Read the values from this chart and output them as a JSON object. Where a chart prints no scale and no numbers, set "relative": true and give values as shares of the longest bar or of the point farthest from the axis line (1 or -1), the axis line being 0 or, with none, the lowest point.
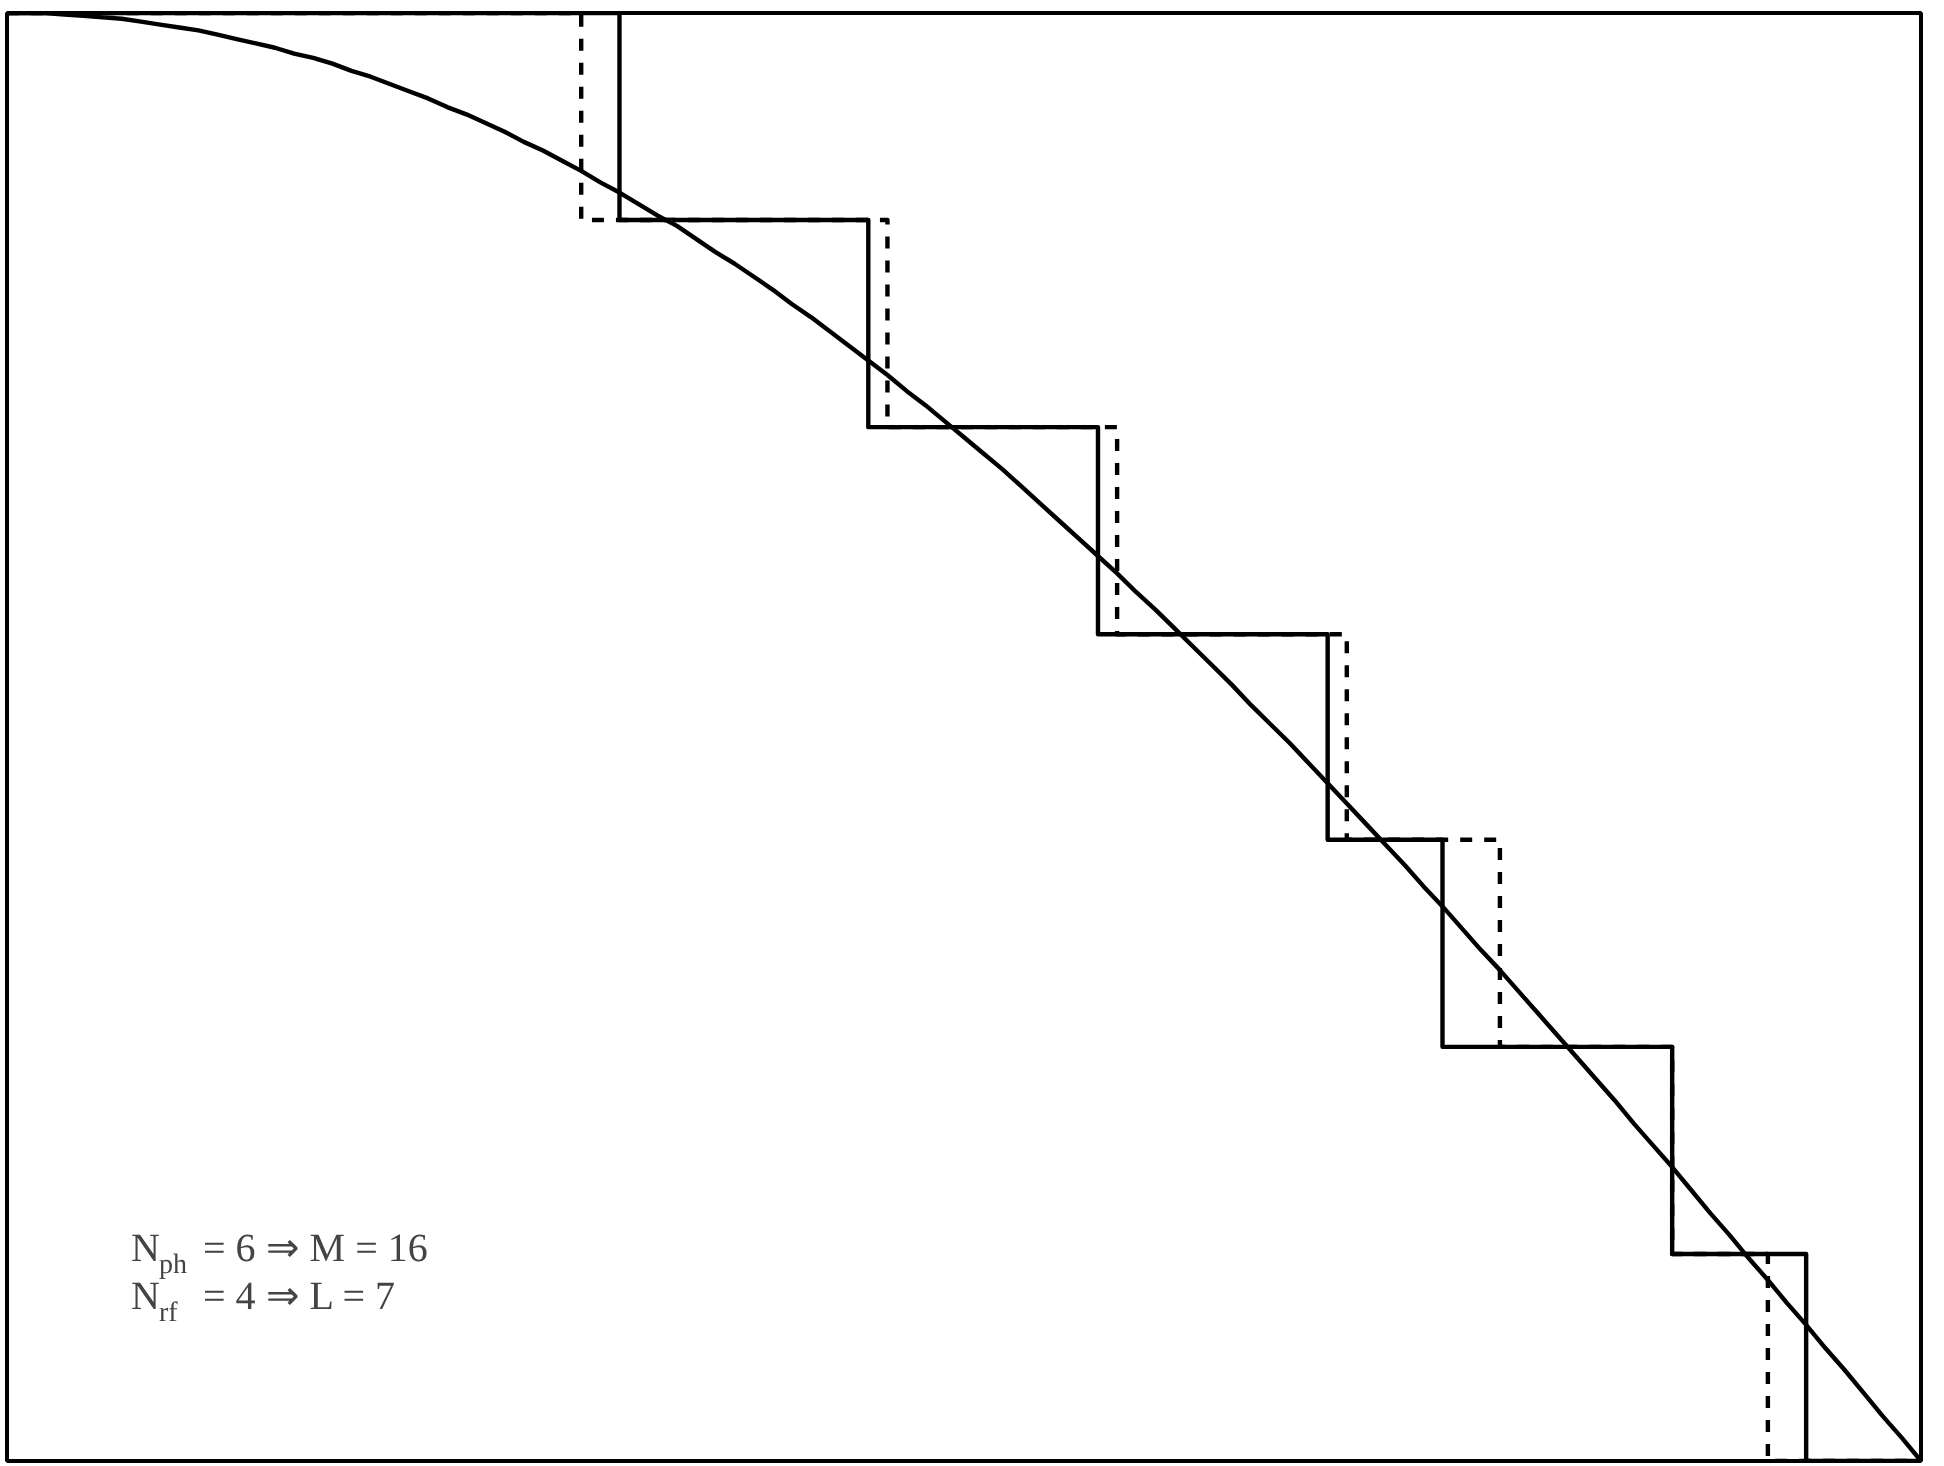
{
  "chart_data": {
    "type": "step",
    "relative": true,
    "grid": false,
    "categories": [
      null,
      null,
      null,
      null,
      null,
      null,
      null,
      null,
      null,
      null,
      null,
      null,
      null,
      null,
      null,
      null,
      null,
      null,
      null,
      null,
      null,
      null,
      null,
      null,
      null,
      null,
      null,
      null,
      null,
      null,
      null,
      null,
      null,
      null,
      null,
      null,
      null,
      null,
      null,
      null,
      null,
      null,
      null,
      null,
      null,
      null,
      null,
      null,
      null,
      null,
      null,
      null,
      null,
      null,
      null,
      null,
      null,
      null,
      null,
      null,
      null,
      null,
      null,
      null,
      null,
      null,
      null,
      null,
      null,
      null,
      null,
      null,
      null,
      null,
      null,
      null,
      null,
      null,
      null,
      null,
      null,
      null,
      null,
      null,
      null,
      null,
      null,
      null,
      null,
      null,
      null,
      null,
      null,
      null,
      null,
      null,
      null,
      null,
      null,
      null,
      null
    ],
    "series": [
      {
        "line_style": "solid",
        "color": "#000000",
        "values": [
          1,
          1,
          1,
          1,
          1,
          1,
          1,
          1,
          1,
          1,
          1,
          1,
          1,
          1,
          1,
          1,
          1,
          1,
          1,
          1,
          1,
          1,
          1,
          1,
          1,
          1,
          1,
          1,
          1,
          1,
          1,
          1,
          0.857,
          0.857,
          0.857,
          0.857,
          0.857,
          0.857,
          0.857,
          0.857,
          0.857,
          0.857,
          0.857,
          0.857,
          0.857,
          0.714,
          0.714,
          0.714,
          0.714,
          0.714,
          0.714,
          0.714,
          0.714,
          0.714,
          0.714,
          0.714,
          0.714,
          0.571,
          0.571,
          0.571,
          0.571,
          0.571,
          0.571,
          0.571,
          0.571,
          0.571,
          0.571,
          0.571,
          0.571,
          0.429,
          0.429,
          0.429,
          0.429,
          0.429,
          0.429,
          0.286,
          0.286,
          0.286,
          0.286,
          0.286,
          0.286,
          0.286,
          0.286,
          0.286,
          0.286,
          0.286,
          0.286,
          0.143,
          0.143,
          0.143,
          0.143,
          0.143,
          0.143,
          0.143,
          0,
          0,
          0,
          0,
          0,
          0,
          0
        ]
      },
      {
        "type": "step",
        "line_style": "dashed",
        "color": "#000000",
        "values": [
          1,
          1,
          1,
          1,
          1,
          1,
          1,
          1,
          1,
          1,
          1,
          1,
          1,
          1,
          1,
          1,
          1,
          1,
          1,
          1,
          1,
          1,
          1,
          1,
          1,
          1,
          1,
          1,
          1,
          1,
          0.857,
          0.857,
          0.857,
          0.857,
          0.857,
          0.857,
          0.857,
          0.857,
          0.857,
          0.857,
          0.857,
          0.857,
          0.857,
          0.857,
          0.857,
          0.857,
          0.714,
          0.714,
          0.714,
          0.714,
          0.714,
          0.714,
          0.714,
          0.714,
          0.714,
          0.714,
          0.714,
          0.714,
          0.571,
          0.571,
          0.571,
          0.571,
          0.571,
          0.571,
          0.571,
          0.571,
          0.571,
          0.571,
          0.571,
          0.571,
          0.429,
          0.429,
          0.429,
          0.429,
          0.429,
          0.429,
          0.429,
          0.429,
          0.286,
          0.286,
          0.286,
          0.286,
          0.286,
          0.286,
          0.286,
          0.286,
          0.286,
          0.143,
          0.143,
          0.143,
          0.143,
          0.143,
          0,
          0,
          0,
          0,
          0,
          0,
          0,
          0,
          0
        ]
      },
      {
        "type": "line",
        "line_style": "solid",
        "color": "#000000",
        "values": [
          1,
          1,
          1,
          0.999,
          0.998,
          0.997,
          0.996,
          0.994,
          0.992,
          0.99,
          0.988,
          0.985,
          0.982,
          0.979,
          0.976,
          0.972,
          0.969,
          0.965,
          0.96,
          0.956,
          0.951,
          0.946,
          0.941,
          0.935,
          0.93,
          0.924,
          0.918,
          0.911,
          0.905,
          0.898,
          0.891,
          0.883,
          0.876,
          0.868,
          0.86,
          0.853,
          0.844,
          0.835,
          0.827,
          0.818,
          0.809,
          0.799,
          0.79,
          0.78,
          0.77,
          0.76,
          0.75,
          0.739,
          0.729,
          0.718,
          0.707,
          0.696,
          0.685,
          0.673,
          0.661,
          0.649,
          0.637,
          0.625,
          0.613,
          0.6,
          0.588,
          0.575,
          0.562,
          0.549,
          0.536,
          0.522,
          0.509,
          0.496,
          0.482,
          0.468,
          0.454,
          0.44,
          0.426,
          0.412,
          0.397,
          0.383,
          0.368,
          0.353,
          0.339,
          0.324,
          0.309,
          0.294,
          0.279,
          0.264,
          0.249,
          0.233,
          0.218,
          0.203,
          0.187,
          0.171,
          0.156,
          0.14,
          0.125,
          0.109,
          0.094,
          0.078,
          0.063,
          0.047,
          0.031,
          0.016,
          0
        ]
      }
    ],
    "annotations": [
      "N$_{ph}$ = 6 ⇒ M = 16",
      "N$_{rf}$ = 4 ⇒ L = 7"
    ]
  }
}
